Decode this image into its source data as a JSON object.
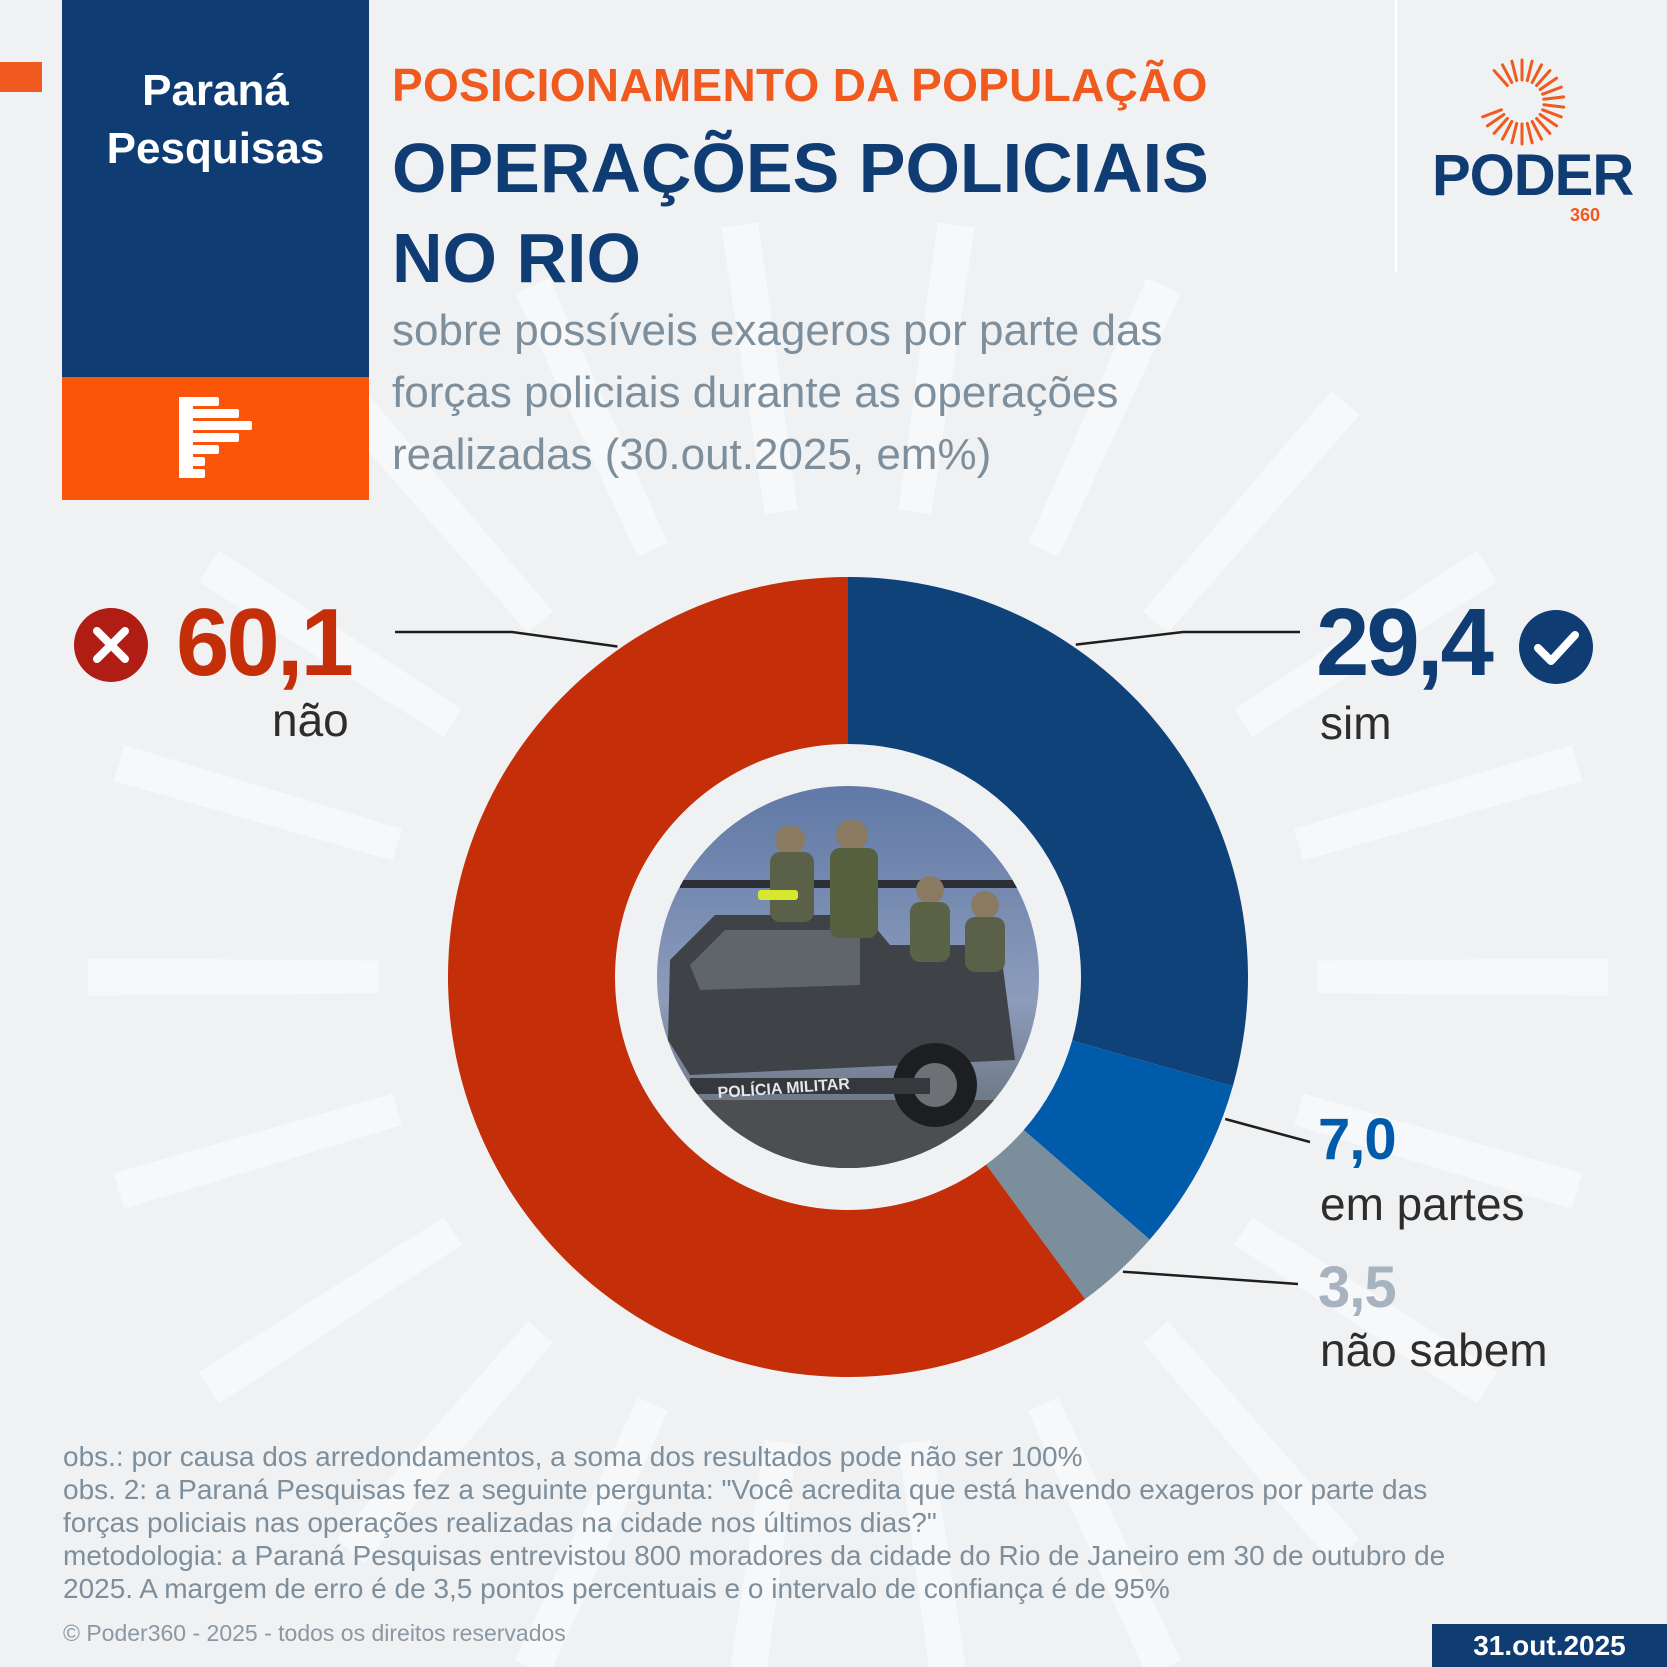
{
  "brand": {
    "name_lines": [
      "Paraná",
      "Pesquisas"
    ],
    "color_primary": "#0f3d73",
    "color_accent": "#fa5508"
  },
  "header": {
    "kicker": "POSICIONAMENTO DA POPULAÇÃO",
    "title_lines": [
      "OPERAÇÕES POLICIAIS",
      "NO RIO"
    ],
    "subtitle_lines": [
      "sobre possíveis exageros por parte das",
      "forças policiais durante as operações",
      "realizadas (30.out.2025, em%)"
    ]
  },
  "publisher": {
    "name": "PODER",
    "number": "360"
  },
  "chart_data": {
    "type": "pie",
    "style": "donut",
    "title": "OPERAÇÕES POLICIAIS NO RIO",
    "start": "top, clockwise",
    "center_image": "police pickup truck with soldiers (POLÍCIA MILITAR)",
    "slices": [
      {
        "label": "sim",
        "value": 29.4,
        "value_text": "29,4",
        "color": "#0f4279",
        "icon": "check-circle-icon"
      },
      {
        "label": "em partes",
        "value": 7.0,
        "value_text": "7,0",
        "color": "#005baa",
        "icon": ""
      },
      {
        "label": "não sabem",
        "value": 3.5,
        "value_text": "3,5",
        "color": "#7a8e9b",
        "label_color": "#a7b4bf",
        "icon": ""
      },
      {
        "label": "não",
        "value": 60.1,
        "value_text": "60,1",
        "color": "#c42e08",
        "icon": "x-circle-icon"
      }
    ]
  },
  "notes": [
    "obs.: por causa dos arredondamentos, a soma dos resultados pode não ser 100%",
    "obs. 2: a Paraná Pesquisas fez a seguinte pergunta: \"Você acredita que está havendo exageros por parte das",
    "forças policiais nas operações realizadas na cidade nos últimos dias?\"",
    "metodologia: a Paraná Pesquisas entrevistou 800 moradores da cidade do Rio de Janeiro em 30 de outubro de",
    "2025. A margem de erro é de 3,5 pontos percentuais e o intervalo de confiança é de 95%"
  ],
  "footer": {
    "copyright": "© Poder360 - 2025 - todos os direitos reservados",
    "date": "31.out.2025"
  }
}
